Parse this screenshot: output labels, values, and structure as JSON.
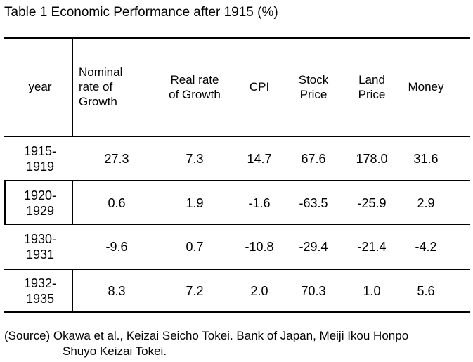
{
  "title": "Table 1 Economic Performance after 1915 (%)",
  "table": {
    "headers": [
      "year",
      "Nominal\nrate of\nGrowth",
      "Real rate\nof Growth",
      "CPI",
      "Stock\nPrice",
      "Land\nPrice",
      "Money"
    ],
    "rows": [
      [
        "1915-\n1919",
        "27.3",
        "7.3",
        "14.7",
        "67.6",
        "178.0",
        "31.6"
      ],
      [
        "1920-\n1929",
        "0.6",
        "1.9",
        "-1.6",
        "-63.5",
        "-25.9",
        "2.9"
      ],
      [
        "1930-\n1931",
        "-9.6",
        "0.7",
        "-10.8",
        "-29.4",
        "-21.4",
        "-4.2"
      ],
      [
        "1932-\n1935",
        "8.3",
        "7.2",
        "2.0",
        "70.3",
        "1.0",
        "5.6"
      ]
    ]
  },
  "source": {
    "line1": "(Source) Okawa et al., Keizai Seicho Tokei. Bank of Japan, Meiji Ikou Honpo",
    "line2": "Shuyo Keizai Tokei."
  }
}
